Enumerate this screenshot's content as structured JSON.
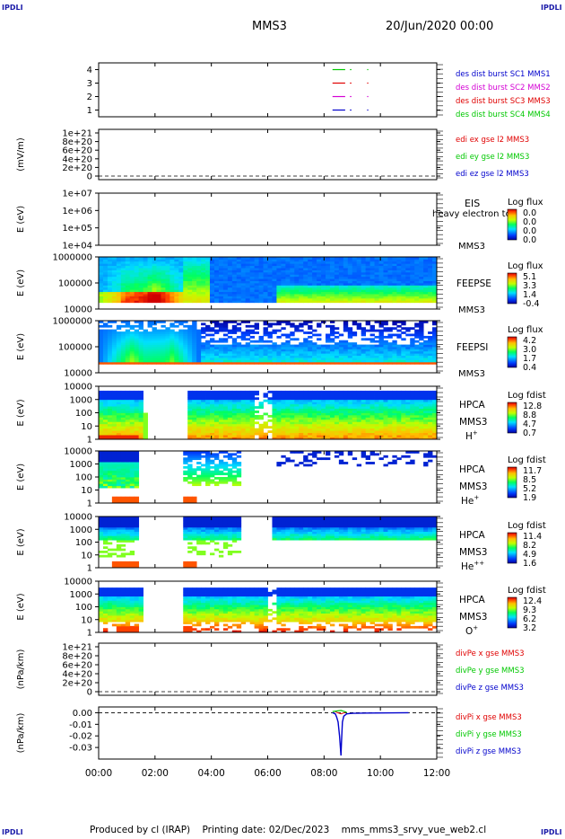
{
  "header": {
    "corner_left_top": "IPDLI",
    "corner_right_top": "IPDLI",
    "corner_left_bottom": "IPDLI",
    "corner_right_bottom": "IPDLI",
    "spacecraft": "MMS3",
    "date_time": "20/Jun/2020 00:00"
  },
  "footer": {
    "produced_by": "Produced by cl (IRAP)",
    "printing_date": "Printing date: 02/Dec/2023",
    "file": "mms_mms3_srvy_vue_web2.cl"
  },
  "colors": {
    "mms1": "#00c800",
    "mms2": "#d400d4",
    "mms3": "#e00000",
    "mms4": "#0000cc",
    "x_component": "#e00000",
    "y_component": "#00c800",
    "z_component": "#0000cc"
  },
  "chart_data": [
    {
      "type": "line",
      "panel": "des-dist-burst",
      "xlim": [
        "00:00",
        "12:00"
      ],
      "ylim": [
        0.5,
        4.5
      ],
      "yticks": [
        "4",
        "3",
        "2",
        "1"
      ],
      "legend": [
        "des dist burst SC1 MMS1",
        "des dist burst SC2 MMS2",
        "des dist burst SC3 MMS3",
        "des dist burst SC4 MMS4"
      ],
      "series": [
        {
          "level": 4,
          "color": "mms1",
          "x": [
            [
              8.3,
              8.75
            ],
            [
              8.92,
              8.97
            ],
            [
              9.53,
              9.57
            ]
          ]
        },
        {
          "level": 3,
          "color": "mms3",
          "x": [
            [
              8.3,
              8.75
            ],
            [
              8.92,
              8.97
            ],
            [
              9.53,
              9.57
            ]
          ]
        },
        {
          "level": 2,
          "color": "mms2",
          "x": [
            [
              8.3,
              8.75
            ],
            [
              8.92,
              8.97
            ],
            [
              9.53,
              9.57
            ]
          ]
        },
        {
          "level": 1,
          "color": "mms4",
          "x": [
            [
              8.3,
              8.75
            ],
            [
              8.92,
              8.97
            ],
            [
              9.53,
              9.57
            ]
          ]
        }
      ]
    },
    {
      "type": "line",
      "panel": "edi-e",
      "ylabel": "(mV/m)",
      "yticks": [
        "1e+21",
        "8e+20",
        "6e+20",
        "4e+20",
        "2e+20",
        "0"
      ],
      "ylim": [
        0,
        1
      ],
      "legend": [
        "edi ex gse l2 MMS3",
        "edi ey gse l2 MMS3",
        "edi ez gse l2 MMS3"
      ],
      "reference_line": 0
    },
    {
      "type": "heatmap",
      "panel": "eis",
      "ylabel": "E (eV)",
      "yticks": [
        "1e+07",
        "1e+06",
        "1e+05",
        "1e+04"
      ],
      "instrument": "EIS",
      "instrument_note": "heavy electron to",
      "spacecraft": "MMS3",
      "colorbar_label": "Log flux",
      "colorbar_ticks": [
        "0.0",
        "0.0",
        "0.0",
        "0.0"
      ]
    },
    {
      "type": "heatmap",
      "panel": "feeps-e",
      "ylabel": "E (eV)",
      "yticks": [
        "1000000",
        "100000",
        "10000"
      ],
      "instrument": "FEEPSE",
      "spacecraft": "MMS3",
      "colorbar_label": "Log flux",
      "colorbar_ticks": [
        "5.1",
        "3.3",
        "1.4",
        "-0.4"
      ]
    },
    {
      "type": "heatmap",
      "panel": "feeps-i",
      "ylabel": "E (eV)",
      "yticks": [
        "1000000",
        "100000",
        "10000"
      ],
      "instrument": "FEEPSI",
      "spacecraft": "MMS3",
      "colorbar_label": "Log flux",
      "colorbar_ticks": [
        "4.2",
        "3.0",
        "1.7",
        "0.4"
      ]
    },
    {
      "type": "heatmap",
      "panel": "hpca-h",
      "ylabel": "E (eV)",
      "yticks": [
        "10000",
        "1000",
        "100",
        "10",
        "1"
      ],
      "instrument": "HPCA",
      "spacecraft": "MMS3",
      "species_base": "H",
      "species_charge": "+",
      "colorbar_label": "Log fdist",
      "colorbar_ticks": [
        "12.8",
        "8.8",
        "4.7",
        "0.7"
      ]
    },
    {
      "type": "heatmap",
      "panel": "hpca-he",
      "ylabel": "E (eV)",
      "yticks": [
        "10000",
        "1000",
        "100",
        "10",
        "1"
      ],
      "instrument": "HPCA",
      "spacecraft": "MMS3",
      "species_base": "He",
      "species_charge": "+",
      "colorbar_label": "Log fdist",
      "colorbar_ticks": [
        "11.7",
        "8.5",
        "5.2",
        "1.9"
      ]
    },
    {
      "type": "heatmap",
      "panel": "hpca-hepp",
      "ylabel": "E (eV)",
      "yticks": [
        "10000",
        "1000",
        "100",
        "10",
        "1"
      ],
      "instrument": "HPCA",
      "spacecraft": "MMS3",
      "species_base": "He",
      "species_charge": "++",
      "colorbar_label": "Log fdist",
      "colorbar_ticks": [
        "11.4",
        "8.2",
        "4.9",
        "1.6"
      ]
    },
    {
      "type": "heatmap",
      "panel": "hpca-o",
      "ylabel": "E (eV)",
      "yticks": [
        "10000",
        "1000",
        "100",
        "10",
        "1"
      ],
      "instrument": "HPCA",
      "spacecraft": "MMS3",
      "species_base": "O",
      "species_charge": "+",
      "colorbar_label": "Log fdist",
      "colorbar_ticks": [
        "12.4",
        "9.3",
        "6.2",
        "3.2"
      ]
    },
    {
      "type": "line",
      "panel": "divpe",
      "ylabel": "(nPa/km)",
      "yticks": [
        "1e+21",
        "8e+20",
        "6e+20",
        "4e+20",
        "2e+20",
        "0"
      ],
      "ylim": [
        0,
        1
      ],
      "legend": [
        "divPe x gse MMS3",
        "divPe y gse MMS3",
        "divPe z gse MMS3"
      ],
      "reference_line": 0
    },
    {
      "type": "line",
      "panel": "divpi",
      "ylabel": "(nPa/km)",
      "yticks": [
        "0.00",
        "-0.01",
        "-0.02",
        "-0.03"
      ],
      "ylim": [
        -0.04,
        0.005
      ],
      "legend": [
        "divPi x gse MMS3",
        "divPi y gse MMS3",
        "divPi z gse MMS3"
      ],
      "reference_line": 0,
      "x_hours": [
        8.3,
        8.4,
        8.45,
        8.5,
        8.55,
        8.6,
        8.62,
        8.65,
        8.7,
        8.8,
        9.0,
        9.5,
        10.0,
        11.0
      ],
      "z_values": [
        0.0,
        -0.001,
        -0.004,
        -0.008,
        -0.02,
        -0.037,
        -0.025,
        -0.008,
        -0.003,
        -0.001,
        -0.0005,
        -0.0003,
        -0.0002,
        0.0
      ]
    }
  ],
  "time_axis": {
    "ticks": [
      "00:00",
      "02:00",
      "04:00",
      "06:00",
      "08:00",
      "10:00",
      "12:00"
    ],
    "range_hours": [
      0,
      12
    ]
  }
}
